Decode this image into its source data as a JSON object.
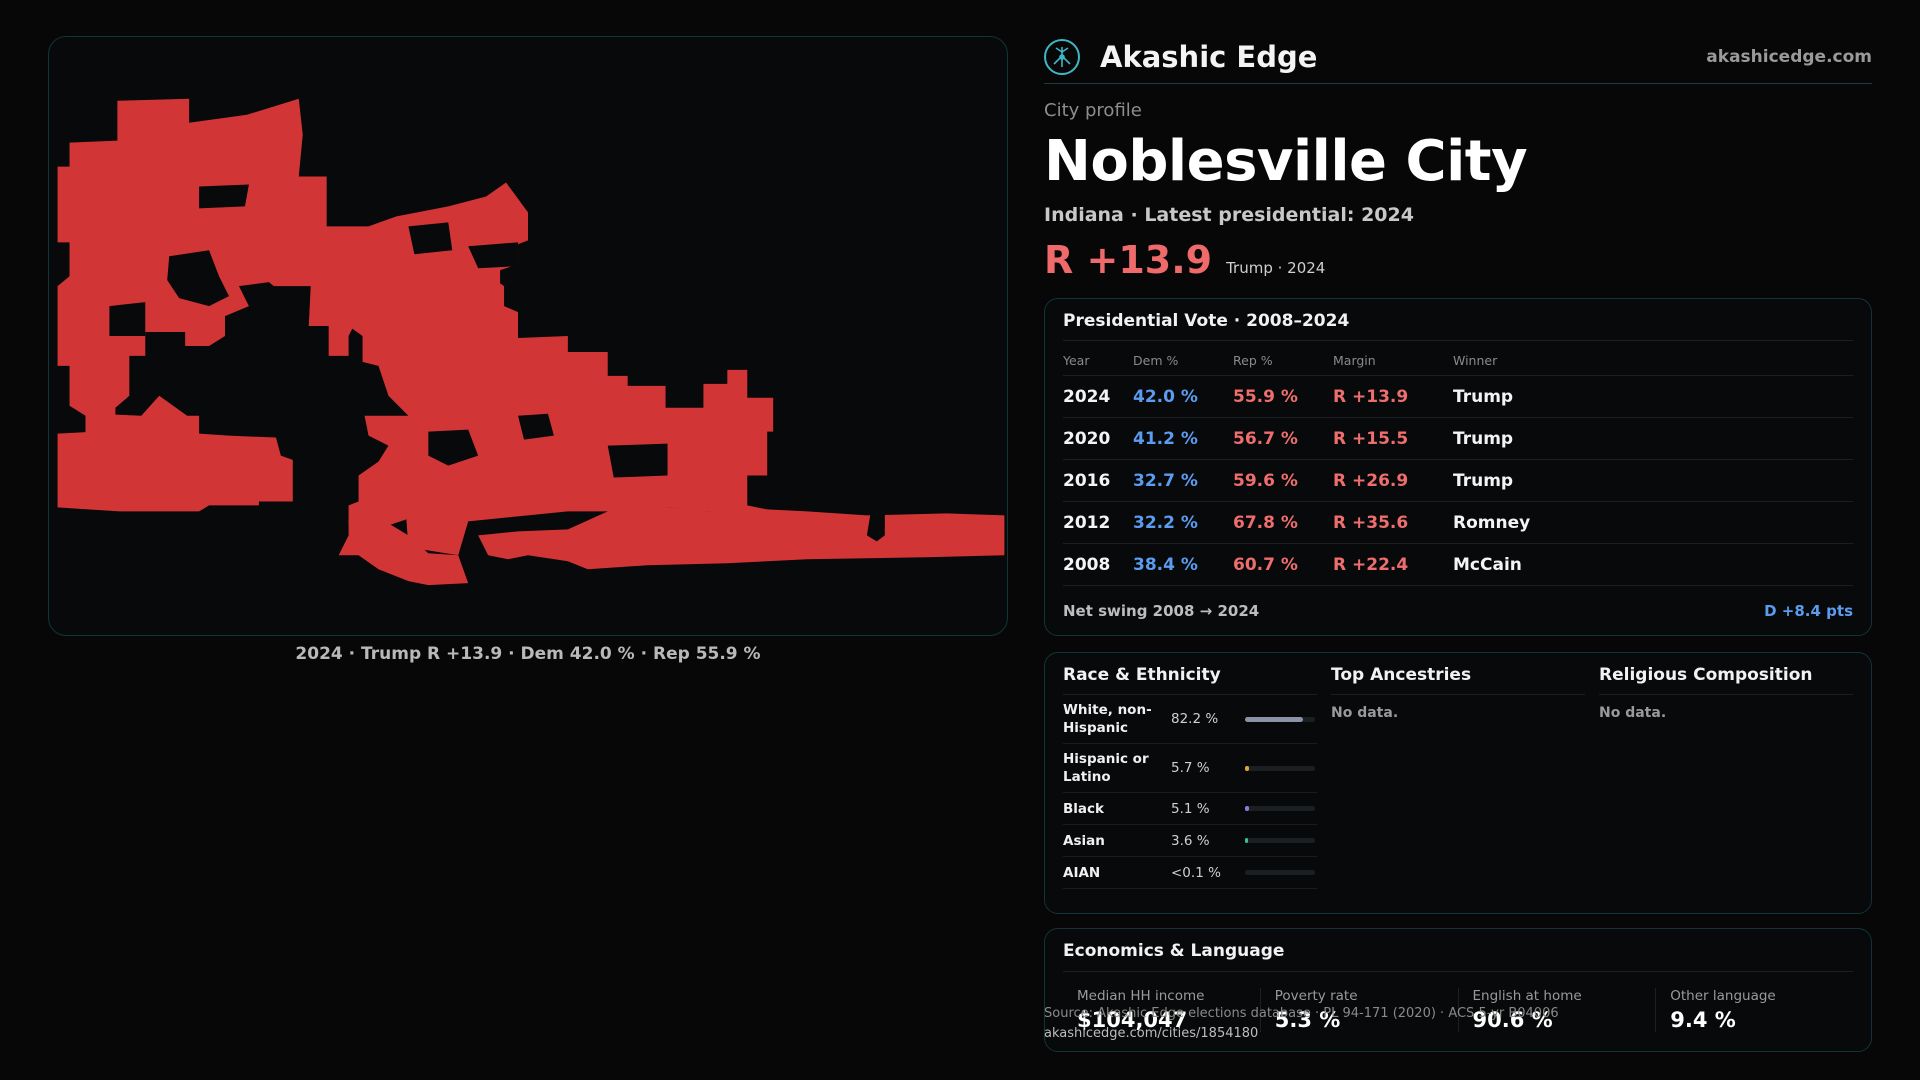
{
  "map": {
    "caption": "2024 · Trump R +13.9 · Dem 42.0 % · Rep 55.9 %",
    "fill_color": "#d23535"
  },
  "brand": {
    "name": "Akashic Edge",
    "url": "akashicedge.com",
    "icon": "tree-of-life-icon"
  },
  "profile": {
    "kicker": "City profile",
    "title": "Noblesville City",
    "subline": "Indiana · Latest presidential: 2024",
    "margin": "R +13.9",
    "margin_meta": "Trump · 2024"
  },
  "presidential": {
    "title": "Presidential Vote · 2008–2024",
    "columns": [
      "Year",
      "Dem %",
      "Rep %",
      "Margin",
      "Winner"
    ],
    "rows": [
      {
        "year": "2024",
        "dem": "42.0 %",
        "rep": "55.9 %",
        "margin": "R +13.9",
        "winner": "Trump"
      },
      {
        "year": "2020",
        "dem": "41.2 %",
        "rep": "56.7 %",
        "margin": "R +15.5",
        "winner": "Trump"
      },
      {
        "year": "2016",
        "dem": "32.7 %",
        "rep": "59.6 %",
        "margin": "R +26.9",
        "winner": "Trump"
      },
      {
        "year": "2012",
        "dem": "32.2 %",
        "rep": "67.8 %",
        "margin": "R +35.6",
        "winner": "Romney"
      },
      {
        "year": "2008",
        "dem": "38.4 %",
        "rep": "60.7 %",
        "margin": "R +22.4",
        "winner": "McCain"
      }
    ],
    "swing_label": "Net swing 2008 → 2024",
    "swing_value": "D +8.4 pts"
  },
  "demographics": {
    "race_title": "Race & Ethnicity",
    "race": [
      {
        "label": "White, non-Hispanic",
        "pct": "82.2 %",
        "share": 0.822,
        "color": "#8a94a6"
      },
      {
        "label": "Hispanic or Latino",
        "pct": "5.7 %",
        "share": 0.057,
        "color": "#e0a33a"
      },
      {
        "label": "Black",
        "pct": "5.1 %",
        "share": 0.051,
        "color": "#8b7ae0"
      },
      {
        "label": "Asian",
        "pct": "3.6 %",
        "share": 0.036,
        "color": "#3fbf8a"
      },
      {
        "label": "AIAN",
        "pct": "<0.1 %",
        "share": 0.0,
        "color": "#c9c9c9"
      }
    ],
    "ancestry_title": "Top Ancestries",
    "ancestry_nodata": "No data.",
    "religion_title": "Religious Composition",
    "religion_nodata": "No data."
  },
  "economics": {
    "title": "Economics & Language",
    "cells": [
      {
        "label": "Median HH income",
        "value": "$104,047"
      },
      {
        "label": "Poverty rate",
        "value": "5.3 %"
      },
      {
        "label": "English at home",
        "value": "90.6 %"
      },
      {
        "label": "Other language",
        "value": "9.4 %"
      }
    ]
  },
  "footer": {
    "source": "Source: Akashic Edge elections database · PL 94-171 (2020) · ACS 5-yr B04006",
    "url": "akashicedge.com/cities/1854180"
  }
}
